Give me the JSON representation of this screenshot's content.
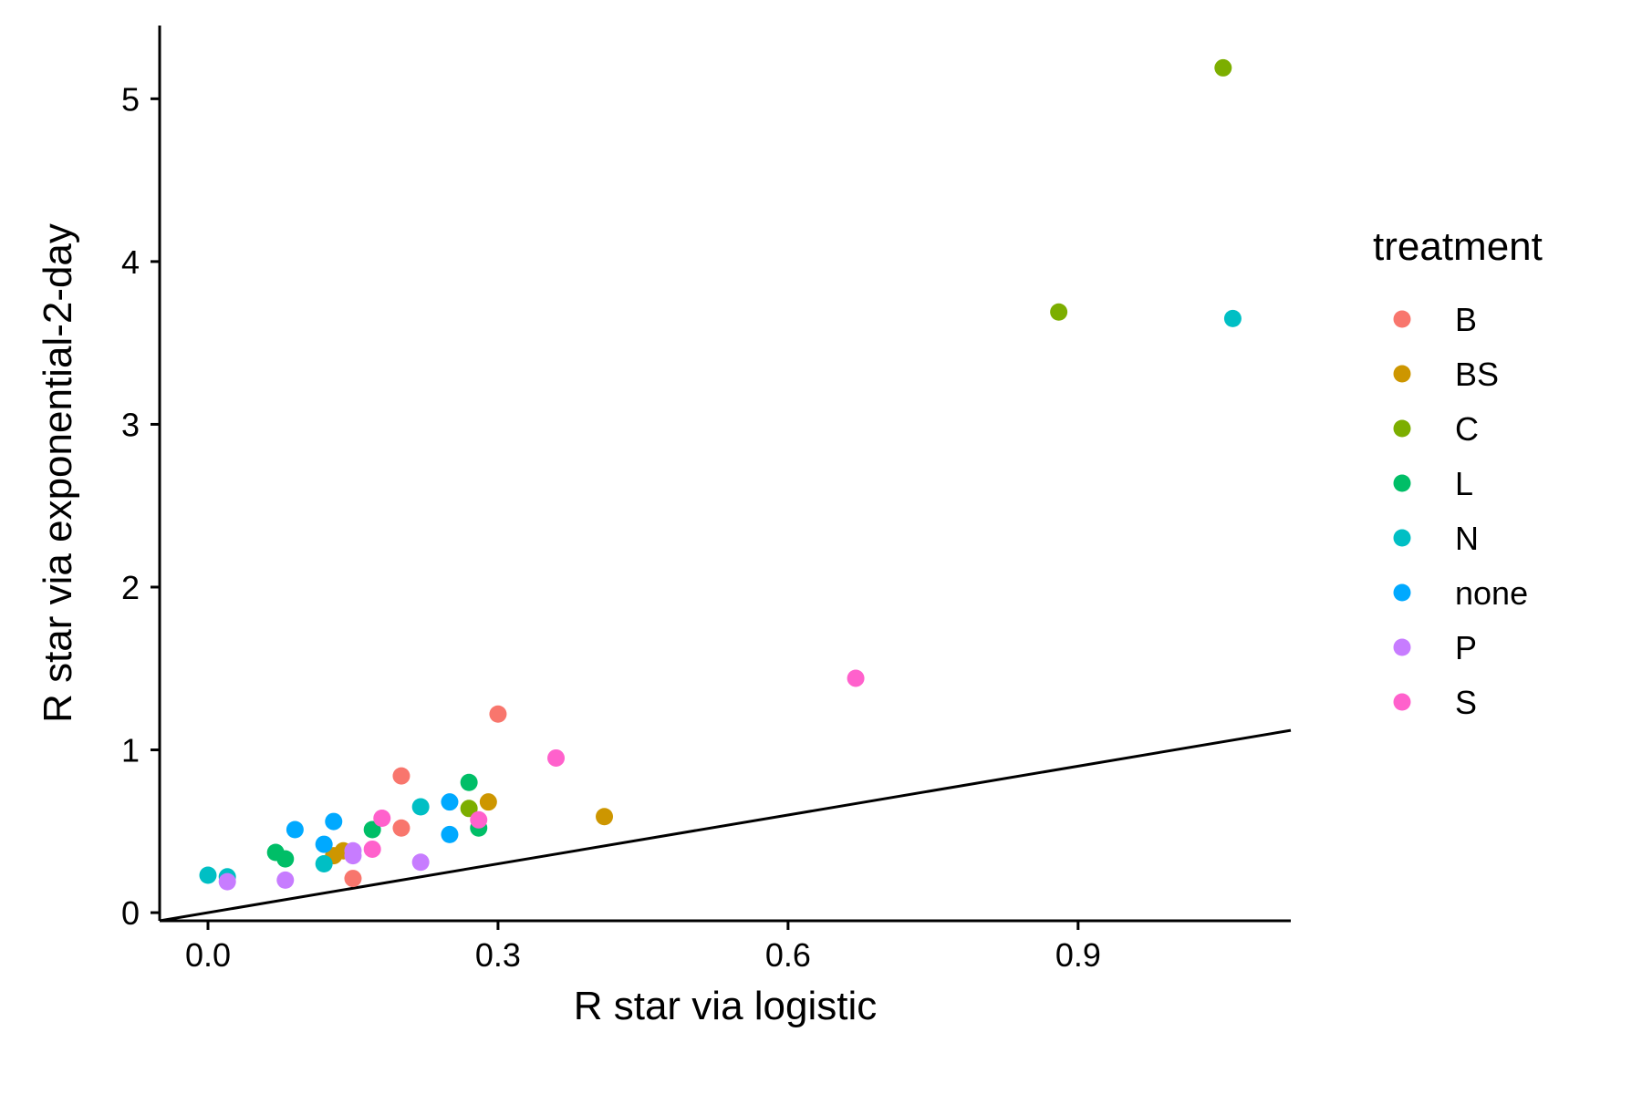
{
  "chart_data": {
    "type": "scatter",
    "xlabel": "R star via logistic",
    "ylabel": "R star via exponential-2-day",
    "xlim": [
      -0.05,
      1.12
    ],
    "ylim": [
      -0.05,
      5.45
    ],
    "x_ticks": [
      0.0,
      0.3,
      0.6,
      0.9
    ],
    "x_tick_labels": [
      "0.0",
      "0.3",
      "0.6",
      "0.9"
    ],
    "y_ticks": [
      0,
      1,
      2,
      3,
      4,
      5
    ],
    "y_tick_labels": [
      "0",
      "1",
      "2",
      "3",
      "4",
      "5"
    ],
    "grid": false,
    "legend": {
      "title": "treatment",
      "placement": "right"
    },
    "reference_line": {
      "slope": 1,
      "intercept": 0
    },
    "series": [
      {
        "name": "B",
        "color": "#F8766D",
        "points": [
          [
            0.3,
            1.22
          ],
          [
            0.2,
            0.84
          ],
          [
            0.2,
            0.52
          ],
          [
            0.15,
            0.21
          ]
        ]
      },
      {
        "name": "BS",
        "color": "#CD9600",
        "points": [
          [
            0.41,
            0.59
          ],
          [
            0.29,
            0.68
          ],
          [
            0.14,
            0.38
          ],
          [
            0.13,
            0.35
          ]
        ]
      },
      {
        "name": "C",
        "color": "#7CAE00",
        "points": [
          [
            1.05,
            5.19
          ],
          [
            0.88,
            3.69
          ],
          [
            0.27,
            0.64
          ]
        ]
      },
      {
        "name": "L",
        "color": "#00BE67",
        "points": [
          [
            0.27,
            0.8
          ],
          [
            0.28,
            0.52
          ],
          [
            0.17,
            0.51
          ],
          [
            0.07,
            0.37
          ],
          [
            0.08,
            0.33
          ]
        ]
      },
      {
        "name": "N",
        "color": "#00BFC4",
        "points": [
          [
            1.06,
            3.65
          ],
          [
            0.22,
            0.65
          ],
          [
            0.12,
            0.3
          ],
          [
            0.0,
            0.23
          ],
          [
            0.02,
            0.22
          ]
        ]
      },
      {
        "name": "none",
        "color": "#00A9FF",
        "points": [
          [
            0.25,
            0.68
          ],
          [
            0.13,
            0.56
          ],
          [
            0.09,
            0.51
          ],
          [
            0.12,
            0.42
          ],
          [
            0.25,
            0.48
          ]
        ]
      },
      {
        "name": "P",
        "color": "#C77CFF",
        "points": [
          [
            0.22,
            0.31
          ],
          [
            0.15,
            0.38
          ],
          [
            0.15,
            0.35
          ],
          [
            0.08,
            0.2
          ],
          [
            0.02,
            0.19
          ]
        ]
      },
      {
        "name": "S",
        "color": "#FF61CC",
        "points": [
          [
            0.67,
            1.44
          ],
          [
            0.36,
            0.95
          ],
          [
            0.18,
            0.58
          ],
          [
            0.28,
            0.57
          ],
          [
            0.17,
            0.39
          ]
        ]
      }
    ]
  }
}
